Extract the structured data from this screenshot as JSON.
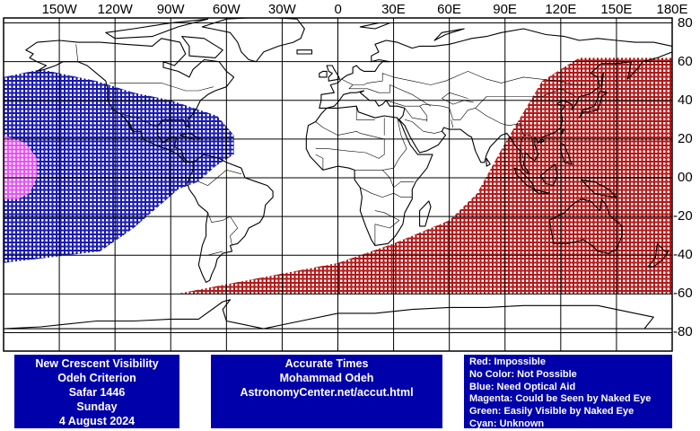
{
  "map": {
    "longitude_labels": [
      "150W",
      "120W",
      "90W",
      "60W",
      "30W",
      "0",
      "30E",
      "60E",
      "90E",
      "120E",
      "150E",
      "180E"
    ],
    "latitude_labels": [
      "80",
      "60",
      "40",
      "20",
      "00",
      "-20",
      "-40",
      "-60",
      "-80"
    ],
    "colors": {
      "border": "#000000",
      "grid": "#000000",
      "land_outline": "#000000",
      "impossible": "#aa0000",
      "need_optical_aid": "#0000aa",
      "naked_eye": "#ff55ff"
    },
    "visibility_regions": [
      {
        "category": "impossible",
        "color": "red",
        "description_lon_lat_polygon": [
          [
            -87,
            -60
          ],
          [
            0,
            -44
          ],
          [
            30,
            -34
          ],
          [
            60,
            -22
          ],
          [
            75,
            -8
          ],
          [
            90,
            18
          ],
          [
            110,
            50
          ],
          [
            130,
            62
          ],
          [
            180,
            62
          ],
          [
            180,
            -60
          ]
        ]
      },
      {
        "category": "need_optical_aid",
        "color": "blue",
        "description_lon_lat_polygon": [
          [
            -180,
            52
          ],
          [
            -160,
            56
          ],
          [
            -130,
            50
          ],
          [
            -110,
            44
          ],
          [
            -90,
            40
          ],
          [
            -65,
            32
          ],
          [
            -56,
            22
          ],
          [
            -56,
            12
          ],
          [
            -66,
            6
          ],
          [
            -75,
            -2
          ],
          [
            -86,
            -6
          ],
          [
            -110,
            -26
          ],
          [
            -128,
            -38
          ],
          [
            -180,
            -44
          ]
        ]
      },
      {
        "category": "could_be_seen_by_naked_eye",
        "color": "magenta",
        "description_lon_lat_polygon": [
          [
            -180,
            22
          ],
          [
            -168,
            18
          ],
          [
            -162,
            10
          ],
          [
            -162,
            0
          ],
          [
            -166,
            -8
          ],
          [
            -172,
            -11
          ],
          [
            -180,
            -11
          ]
        ]
      }
    ]
  },
  "left_box": {
    "lines": [
      "New Crescent Visibility",
      "Odeh Criterion",
      "Safar 1446",
      "Sunday",
      "4 August 2024"
    ]
  },
  "middle_box": {
    "lines": [
      "Accurate Times",
      "Mohammad Odeh",
      "AstronomyCenter.net/accut.html"
    ]
  },
  "legend_box": {
    "lines": [
      "Red: Impossible",
      "No Color: Not Possible",
      "Blue: Need Optical Aid",
      "Magenta: Could be Seen by Naked Eye",
      "Green: Easily Visible by Naked Eye",
      "Cyan: Unknown"
    ]
  }
}
